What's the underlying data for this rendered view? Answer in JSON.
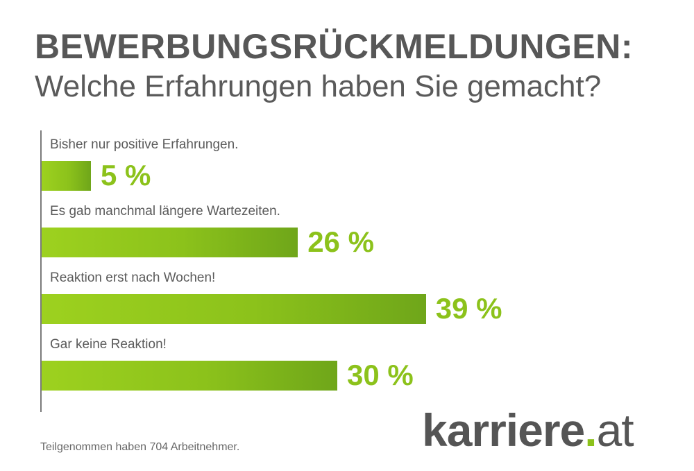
{
  "title": "BEWERBUNGSRÜCKMELDUNGEN:",
  "subtitle": "Welche Erfahrungen haben Sie gemacht?",
  "footnote": "Teilgenommen haben 704 Arbeitnehmer.",
  "logo": {
    "brand": "karriere",
    "dot": ".",
    "tld": "at"
  },
  "colors": {
    "bar": "#8cc21b",
    "text": "#575757"
  },
  "chart_data": {
    "type": "bar",
    "orientation": "horizontal",
    "categories": [
      "Bisher nur positive Erfahrungen.",
      "Es gab manchmal längere Wartezeiten.",
      "Reaktion erst nach Wochen!",
      "Gar keine Reaktion!"
    ],
    "values": [
      5,
      26,
      39,
      30
    ],
    "value_labels": [
      "5 %",
      "26 %",
      "39 %",
      "30 %"
    ],
    "unit": "%"
  }
}
